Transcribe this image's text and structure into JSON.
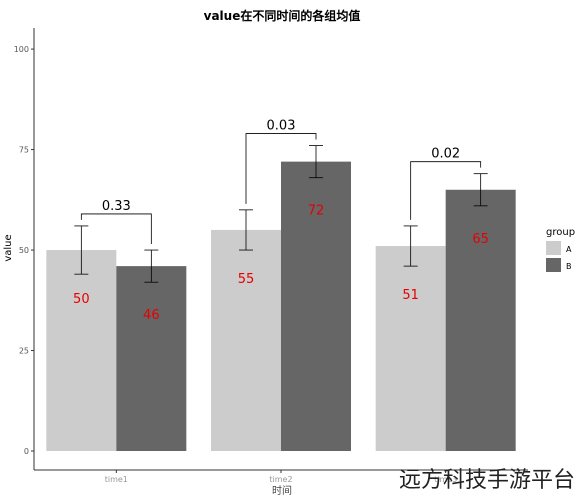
{
  "chart_data": {
    "type": "bar",
    "title": "value在不同时间的各组均值",
    "xlabel": "时间",
    "ylabel": "value",
    "categories": [
      "time1",
      "time2",
      "time3"
    ],
    "series": [
      {
        "name": "A",
        "color": "#cccccc",
        "values": [
          50,
          55,
          51
        ],
        "err_low": [
          44,
          50,
          46
        ],
        "err_high": [
          56,
          60,
          56
        ]
      },
      {
        "name": "B",
        "color": "#666666",
        "values": [
          46,
          72,
          65
        ],
        "err_low": [
          42,
          68,
          61
        ],
        "err_high": [
          50,
          76,
          69
        ]
      }
    ],
    "yticks": [
      0,
      25,
      50,
      75,
      100
    ],
    "ylim": [
      0,
      105
    ],
    "grid": false,
    "legend": {
      "title": "group",
      "position": "right"
    },
    "bar_label_color": "#e60000",
    "pvalues": [
      "0.33",
      "0.03",
      "0.02"
    ]
  },
  "watermark": "远方科技手游平台"
}
